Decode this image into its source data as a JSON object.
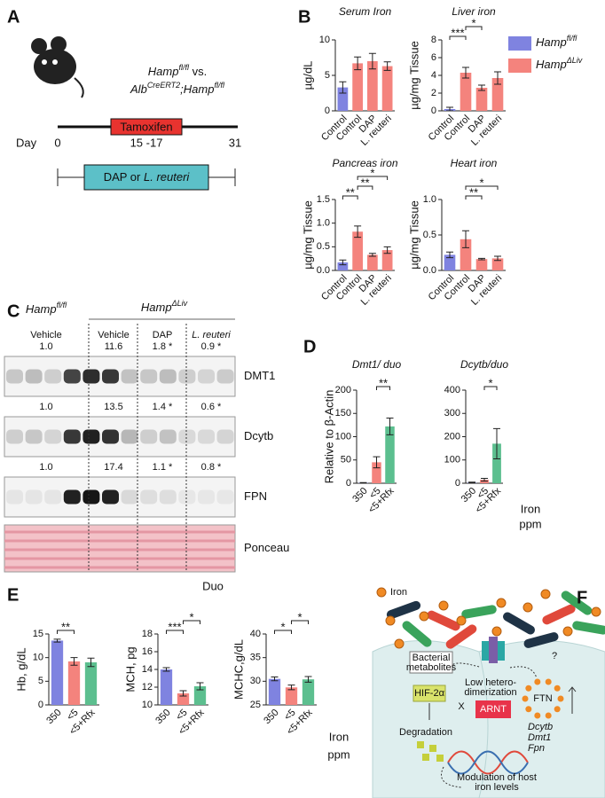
{
  "panel_labels": [
    "A",
    "B",
    "C",
    "D",
    "E",
    "F"
  ],
  "panel_a": {
    "line_1": [
      "Hamp",
      "fl/fl",
      " vs."
    ],
    "line_2": [
      "Alb",
      "CreERT2",
      ";Hamp",
      "fl/fl"
    ],
    "treatment_bar": "Tamoxifen",
    "day_label": "Day",
    "days": [
      "0",
      "15 -17",
      "31"
    ],
    "diet": [
      "DAP or ",
      "L. reuteri"
    ]
  },
  "panel_b": {
    "legend": [
      [
        "Hamp",
        "fl/fl"
      ],
      [
        "Hamp",
        "ΔLiv"
      ]
    ],
    "legend_colors": [
      "#7f83e0",
      "#f4837d"
    ]
  },
  "panel_c": {
    "groups": [
      [
        "Hamp",
        "fl/fl"
      ],
      [
        "Hamp",
        "ΔLiv"
      ]
    ],
    "lanes": [
      "Vehicle",
      "Vehicle",
      "DAP",
      "L. reuteri"
    ],
    "blots": [
      {
        "name": "DMT1",
        "ratios": [
          "1.0",
          "11.6",
          "1.8 *",
          "0.9 *"
        ]
      },
      {
        "name": "Dcytb",
        "ratios": [
          "1.0",
          "13.5",
          "1.4 *",
          "0.6 *"
        ]
      },
      {
        "name": "FPN",
        "ratios": [
          "1.0",
          "17.4",
          "1.1 *",
          "0.8 *"
        ]
      },
      {
        "name": "Ponceau"
      }
    ],
    "tissue": "Duo"
  },
  "panel_d": {
    "xlabel": [
      "Iron",
      "ppm"
    ]
  },
  "panel_e": {
    "xlabel": [
      "Iron",
      "ppm"
    ]
  },
  "panel_f": {
    "iron_legend": "Iron",
    "bacterial": [
      "Bacterial",
      "metabolites"
    ],
    "hif": "HIF-2α",
    "low_dimer": [
      "Low hetero-",
      "dimerization"
    ],
    "x_mark": "X",
    "arnt": "ARNT",
    "degradation": "Degradation",
    "ftn": "FTN",
    "question": "?",
    "genes": [
      "Dcytb",
      "Dmt1",
      "Fpn"
    ],
    "modulation": [
      "Modulation of host",
      "iron levels"
    ]
  },
  "chart_data": [
    {
      "type": "bar",
      "title": "Serum Iron",
      "ylabel": "µg/dL",
      "categories": [
        "Control",
        "Control",
        "DAP",
        "L. reuteri"
      ],
      "values": [
        3.3,
        6.7,
        7.0,
        6.3
      ],
      "errors": [
        0.8,
        0.9,
        1.1,
        0.6
      ],
      "colors": [
        "#7f83e0",
        "#f4837d",
        "#f4837d",
        "#f4837d"
      ],
      "ylim": [
        0,
        10
      ],
      "yticks": [
        0,
        5,
        10
      ]
    },
    {
      "type": "bar",
      "title": "Liver iron",
      "ylabel": "µg/mg Tissue",
      "categories": [
        "Control",
        "Control",
        "DAP",
        "L. reuteri"
      ],
      "values": [
        0.2,
        4.3,
        2.6,
        3.7
      ],
      "errors": [
        0.2,
        0.6,
        0.3,
        0.7
      ],
      "colors": [
        "#7f83e0",
        "#f4837d",
        "#f4837d",
        "#f4837d"
      ],
      "ylim": [
        0,
        8
      ],
      "yticks": [
        0,
        2,
        4,
        6,
        8
      ],
      "significance": [
        {
          "label": "***",
          "between": [
            0,
            1
          ]
        },
        {
          "label": "*",
          "between": [
            1,
            2
          ]
        }
      ]
    },
    {
      "type": "bar",
      "title": "Pancreas iron",
      "ylabel": "µg/mg Tissue",
      "categories": [
        "Control",
        "Control",
        "DAP",
        "L. reuteri"
      ],
      "values": [
        0.17,
        0.82,
        0.33,
        0.43
      ],
      "errors": [
        0.05,
        0.12,
        0.03,
        0.07
      ],
      "colors": [
        "#7f83e0",
        "#f4837d",
        "#f4837d",
        "#f4837d"
      ],
      "ylim": [
        0,
        1.5
      ],
      "yticks": [
        {
          "value": 0,
          "label": "0.0"
        },
        {
          "value": 0.5,
          "label": "0.5"
        },
        {
          "value": 1,
          "label": "1.0"
        },
        {
          "value": 1.5,
          "label": "1.5"
        }
      ],
      "significance": [
        {
          "label": "**",
          "between": [
            0,
            1
          ]
        },
        {
          "label": "**",
          "between": [
            1,
            2
          ]
        },
        {
          "label": "*",
          "between": [
            1,
            3
          ]
        }
      ]
    },
    {
      "type": "bar",
      "title": "Heart iron",
      "ylabel": "µg/mg Tissue",
      "categories": [
        "Control",
        "Control",
        "DAP",
        "L. reuteri"
      ],
      "values": [
        0.22,
        0.44,
        0.16,
        0.17
      ],
      "errors": [
        0.04,
        0.12,
        0.01,
        0.03
      ],
      "colors": [
        "#7f83e0",
        "#f4837d",
        "#f4837d",
        "#f4837d"
      ],
      "ylim": [
        0,
        1
      ],
      "yticks": [
        {
          "value": 0,
          "label": "0.0"
        },
        {
          "value": 0.5,
          "label": "0.5"
        },
        {
          "value": 1,
          "label": "1.0"
        }
      ],
      "significance": [
        {
          "label": "**",
          "between": [
            1,
            2
          ]
        },
        {
          "label": "*",
          "between": [
            1,
            3
          ]
        }
      ]
    },
    {
      "type": "bar",
      "title": "Dmt1/ duo",
      "ylabel": "Relative to β-Actin",
      "categories": [
        "350",
        "<5",
        "<5+Rfx"
      ],
      "values": [
        1,
        45,
        122
      ],
      "errors": [
        0.5,
        12,
        18
      ],
      "colors": [
        "#7f83e0",
        "#f4837d",
        "#5cbf8f"
      ],
      "ylim": [
        0,
        200
      ],
      "yticks": [
        0,
        50,
        100,
        150,
        200
      ],
      "significance": [
        {
          "label": "**",
          "between": [
            1,
            2
          ]
        }
      ]
    },
    {
      "type": "bar",
      "title": "Dcytb/duo",
      "categories": [
        "350",
        "<5",
        "<5+Rfx"
      ],
      "values": [
        3,
        15,
        170
      ],
      "errors": [
        2,
        6,
        65
      ],
      "colors": [
        "#7f83e0",
        "#f4837d",
        "#5cbf8f"
      ],
      "ylim": [
        0,
        400
      ],
      "yticks": [
        0,
        100,
        200,
        300,
        400
      ],
      "significance": [
        {
          "label": "*",
          "between": [
            1,
            2
          ]
        }
      ]
    },
    {
      "type": "bar",
      "ylabel": "Hb, g/dL",
      "categories": [
        "350",
        "<5",
        "<5+Rfx"
      ],
      "values": [
        13.6,
        9.2,
        9.0
      ],
      "errors": [
        0.3,
        0.8,
        0.9
      ],
      "colors": [
        "#7f83e0",
        "#f4837d",
        "#5cbf8f"
      ],
      "ylim": [
        0,
        15
      ],
      "yticks": [
        0,
        5,
        10,
        15
      ],
      "significance": [
        {
          "label": "**",
          "between": [
            0,
            1
          ]
        }
      ]
    },
    {
      "type": "bar",
      "ylabel": "MCH, pg",
      "categories": [
        "350",
        "<5",
        "<5+Rfx"
      ],
      "values": [
        14,
        11.3,
        12.1
      ],
      "errors": [
        0.2,
        0.3,
        0.4
      ],
      "colors": [
        "#7f83e0",
        "#f4837d",
        "#5cbf8f"
      ],
      "ylim": [
        10,
        18
      ],
      "yticks": [
        10,
        12,
        14,
        16,
        18
      ],
      "significance": [
        {
          "label": "***",
          "between": [
            0,
            1
          ]
        },
        {
          "label": "*",
          "between": [
            1,
            2
          ]
        }
      ]
    },
    {
      "type": "bar",
      "ylabel": "MCHC,g/dL",
      "categories": [
        "350",
        "<5",
        "<5+Rfx"
      ],
      "values": [
        30.5,
        28.7,
        30.4
      ],
      "errors": [
        0.4,
        0.5,
        0.6
      ],
      "colors": [
        "#7f83e0",
        "#f4837d",
        "#5cbf8f"
      ],
      "ylim": [
        25,
        40
      ],
      "yticks": [
        25,
        30,
        35,
        40
      ],
      "significance": [
        {
          "label": "*",
          "between": [
            0,
            1
          ]
        },
        {
          "label": "*",
          "between": [
            1,
            2
          ]
        }
      ]
    }
  ]
}
